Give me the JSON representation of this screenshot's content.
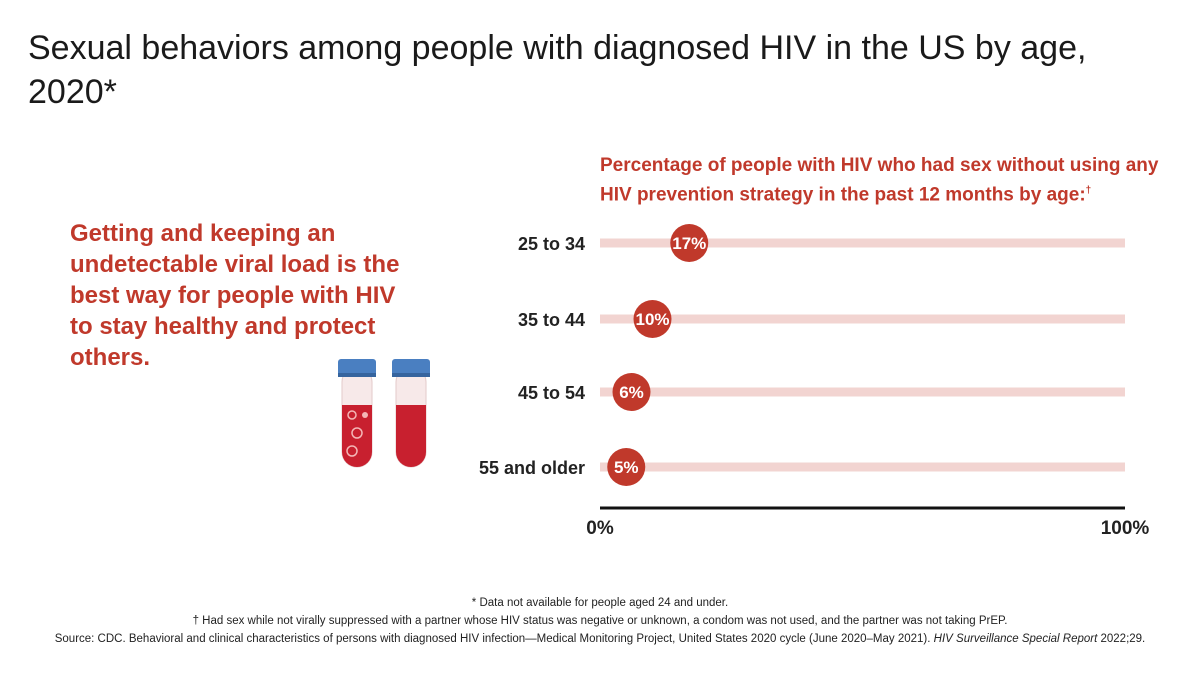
{
  "title": "Sexual behaviors among people with diagnosed HIV in the US by age, 2020*",
  "message": "Getting and keeping an undetectable viral load is the best way for people with HIV to stay healthy and protect others.",
  "chart_data": {
    "type": "bar",
    "title": "Percentage of people with HIV who had sex without using any HIV prevention strategy in the past 12 months by age:",
    "title_mark": "†",
    "categories": [
      "25 to 34",
      "35 to 44",
      "45 to 54",
      "55 and older"
    ],
    "values": [
      17,
      10,
      6,
      5
    ],
    "value_labels": [
      "17%",
      "10%",
      "6%",
      "5%"
    ],
    "xlim": [
      0,
      100
    ],
    "x_tick_labels": [
      "0%",
      "100%"
    ],
    "xlabel": "",
    "ylabel": "",
    "grid": false
  },
  "colors": {
    "accent": "#c0392b",
    "track": "#f2d4d1",
    "axis": "#111111",
    "tube_cap": "#4a7fc1"
  },
  "footnotes": {
    "line1": "* Data not available for people aged 24 and under.",
    "line2": "† Had sex while not virally suppressed with a partner whose HIV status was negative or unknown, a condom was not used, and the partner was not taking PrEP.",
    "source_text": "Source: CDC. Behavioral and clinical characteristics of persons with diagnosed HIV infection—Medical Monitoring Project, United States 2020 cycle (June 2020–May 2021). ",
    "source_journal": "HIV Surveillance Special Report",
    "source_end": " 2022;29."
  },
  "illustration": {
    "icon": "test-tubes-icon"
  }
}
